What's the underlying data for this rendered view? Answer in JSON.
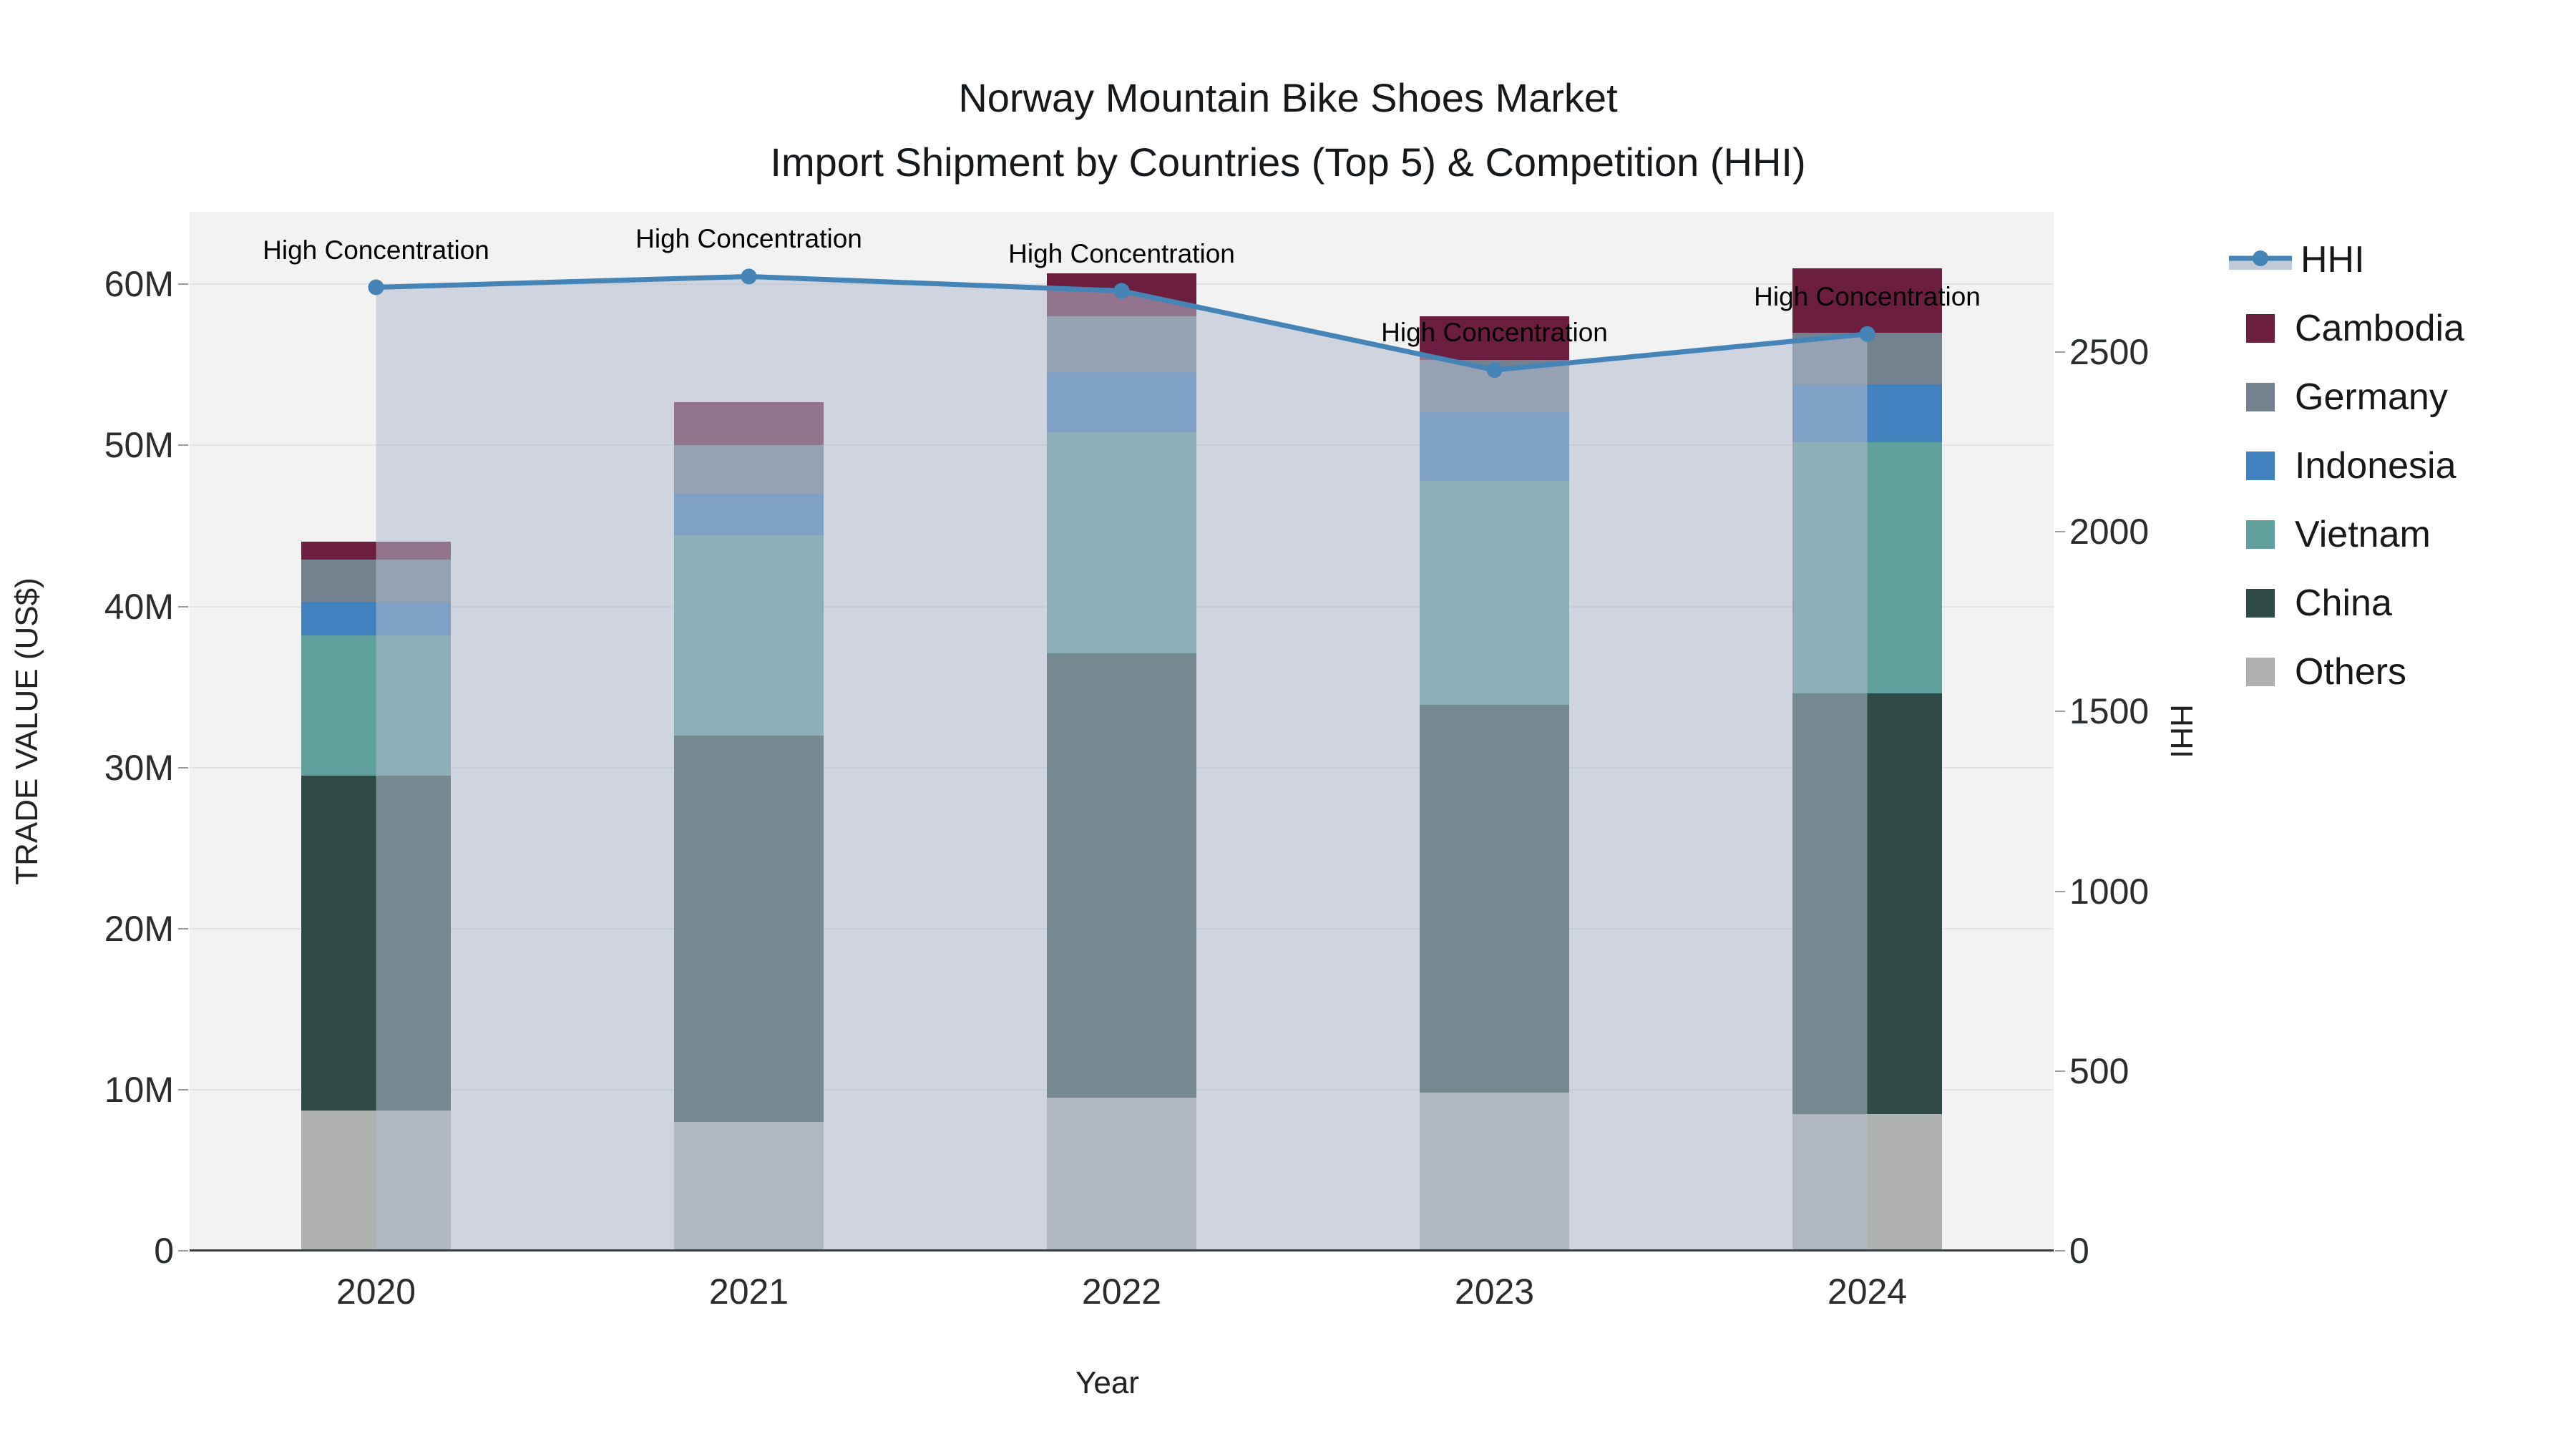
{
  "title": {
    "line1": "Norway Mountain Bike Shoes Market",
    "line2": "Import Shipment by Countries (Top 5) & Competition (HHI)"
  },
  "chart_data": {
    "type": "bar",
    "subtype": "stacked-bars-with-line-overlay",
    "categories": [
      "2020",
      "2021",
      "2022",
      "2023",
      "2024"
    ],
    "xlabel": "Year",
    "ylabel": "TRADE VALUE (US$)",
    "y2label": "HHI",
    "unit": "millions of US$",
    "ylim": [
      0,
      64.5
    ],
    "y2lim": [
      0,
      2890
    ],
    "yticks": [
      0,
      10,
      20,
      30,
      40,
      50,
      60
    ],
    "ytick_labels": [
      "0",
      "10M",
      "20M",
      "30M",
      "40M",
      "50M",
      "60M"
    ],
    "y2ticks": [
      0,
      500,
      1000,
      1500,
      2000,
      2500
    ],
    "y2tick_labels": [
      "0",
      "500",
      "1000",
      "1500",
      "2000",
      "2500"
    ],
    "grid": "horizontal",
    "series": [
      {
        "name": "Others",
        "color": "#aeb1b0",
        "values": [
          8.7,
          8.0,
          9.5,
          9.8,
          8.5
        ]
      },
      {
        "name": "China",
        "color": "#2d4a46",
        "values": [
          20.8,
          24.0,
          27.6,
          24.1,
          26.1
        ]
      },
      {
        "name": "Vietnam",
        "color": "#61a19d",
        "values": [
          8.7,
          12.4,
          13.7,
          13.9,
          15.6
        ]
      },
      {
        "name": "Indonesia",
        "color": "#4181bd",
        "values": [
          2.1,
          2.6,
          3.8,
          4.3,
          3.6
        ]
      },
      {
        "name": "Germany",
        "color": "#74818f",
        "values": [
          2.6,
          3.0,
          3.4,
          3.2,
          3.2
        ]
      },
      {
        "name": "Cambodia",
        "color": "#6c1e3e",
        "values": [
          1.1,
          2.7,
          2.7,
          2.7,
          4.0
        ]
      }
    ],
    "bar_totals": [
      44.0,
      52.7,
      60.7,
      58.0,
      61.0
    ],
    "line_series": {
      "name": "HHI",
      "axis": "right",
      "color": "#4484b7",
      "fill_color": "rgba(178,188,206,0.55)",
      "values": [
        2680,
        2710,
        2670,
        2450,
        2550
      ]
    },
    "annotations": [
      {
        "text": "High Concentration",
        "category": "2020"
      },
      {
        "text": "High Concentration",
        "category": "2021"
      },
      {
        "text": "High Concentration",
        "category": "2022"
      },
      {
        "text": "High Concentration",
        "category": "2023"
      },
      {
        "text": "High Concentration",
        "category": "2024"
      }
    ],
    "legend": {
      "position": "right",
      "order": [
        "HHI",
        "Cambodia",
        "Germany",
        "Indonesia",
        "Vietnam",
        "China",
        "Others"
      ]
    }
  }
}
